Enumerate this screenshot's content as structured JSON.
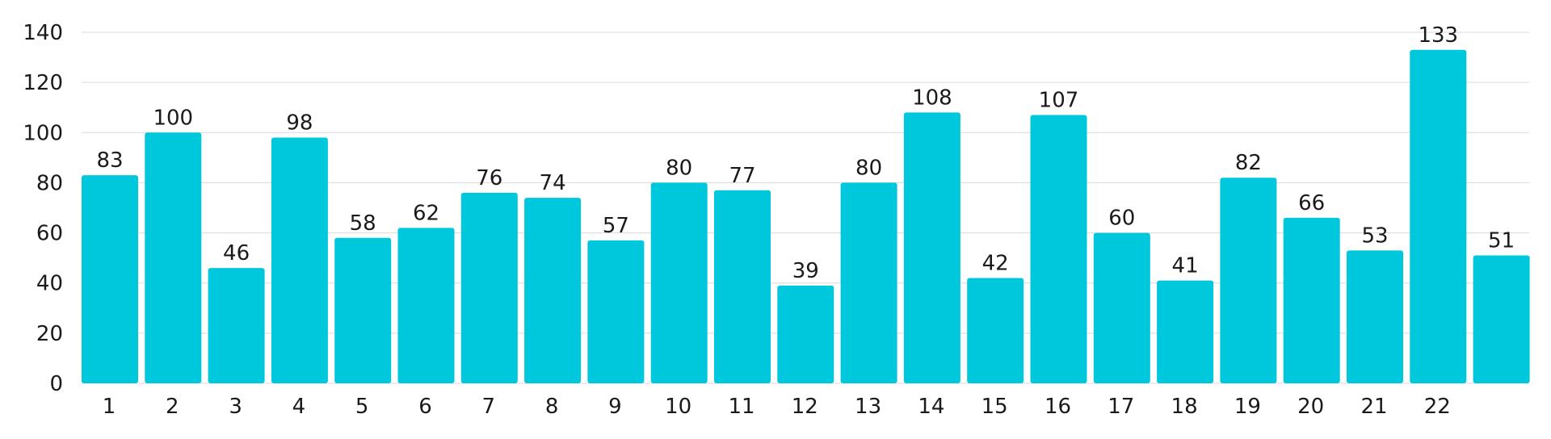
{
  "chart_data": {
    "type": "bar",
    "categories": [
      "1",
      "2",
      "3",
      "4",
      "5",
      "6",
      "7",
      "8",
      "9",
      "10",
      "11",
      "12",
      "13",
      "14",
      "15",
      "16",
      "17",
      "18",
      "19",
      "20",
      "21",
      "22",
      ""
    ],
    "values": [
      83,
      100,
      46,
      98,
      58,
      62,
      76,
      74,
      57,
      80,
      77,
      39,
      80,
      108,
      42,
      107,
      60,
      41,
      82,
      66,
      53,
      133,
      51
    ],
    "ylim": [
      0,
      140
    ],
    "yticks": [
      0,
      20,
      40,
      60,
      80,
      100,
      120,
      140
    ],
    "grid": true,
    "bar_color": "#00C8DC",
    "grid_color": "#D9D9D9",
    "text_color": "#1a1a1a"
  }
}
